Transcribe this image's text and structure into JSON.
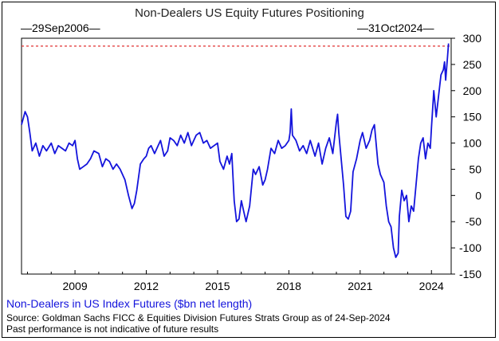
{
  "chart_data": {
    "type": "line",
    "title": "Non-Dealers US Equity Futures Positioning",
    "start_label": "29Sep2006",
    "end_label": "31Oct2024",
    "legend": "Non-Dealers in US Index Futures ($bn net length)",
    "source_lines": [
      "Source: Goldman Sachs FICC & Equities Division Futures Strats Group as of 24-Sep-2024",
      "Past performance is not indicative of future results"
    ],
    "xlim": [
      2006.75,
      2024.83
    ],
    "ylim": [
      -150,
      300
    ],
    "x_ticks": [
      2009,
      2012,
      2015,
      2018,
      2021,
      2024
    ],
    "y_ticks": [
      300,
      250,
      200,
      150,
      100,
      50,
      0,
      -50,
      -100,
      -150
    ],
    "reference_line": {
      "y": 285,
      "color": "#e03030",
      "style": "dashed"
    },
    "line_color": "#1414dc",
    "series": [
      {
        "x": [
          2006.75,
          2006.9,
          2007.0,
          2007.1,
          2007.2,
          2007.35,
          2007.5,
          2007.65,
          2007.8,
          2008.0,
          2008.15,
          2008.3,
          2008.45,
          2008.6,
          2008.75,
          2008.9,
          2009.0,
          2009.1,
          2009.2,
          2009.35,
          2009.5,
          2009.65,
          2009.8,
          2010.0,
          2010.15,
          2010.3,
          2010.45,
          2010.6,
          2010.75,
          2010.9,
          2011.0,
          2011.1,
          2011.25,
          2011.4,
          2011.5,
          2011.6,
          2011.75,
          2011.9,
          2012.0,
          2012.1,
          2012.2,
          2012.35,
          2012.5,
          2012.6,
          2012.75,
          2012.9,
          2013.0,
          2013.15,
          2013.3,
          2013.45,
          2013.6,
          2013.75,
          2013.9,
          2014.0,
          2014.1,
          2014.25,
          2014.4,
          2014.55,
          2014.7,
          2014.85,
          2015.0,
          2015.1,
          2015.25,
          2015.4,
          2015.5,
          2015.6,
          2015.7,
          2015.8,
          2015.9,
          2016.0,
          2016.1,
          2016.2,
          2016.35,
          2016.5,
          2016.6,
          2016.75,
          2016.9,
          2017.0,
          2017.1,
          2017.25,
          2017.4,
          2017.55,
          2017.7,
          2017.85,
          2018.0,
          2018.05,
          2018.1,
          2018.15,
          2018.3,
          2018.45,
          2018.6,
          2018.75,
          2018.9,
          2019.0,
          2019.1,
          2019.25,
          2019.4,
          2019.55,
          2019.7,
          2019.85,
          2020.0,
          2020.05,
          2020.1,
          2020.2,
          2020.3,
          2020.4,
          2020.5,
          2020.6,
          2020.7,
          2020.85,
          2021.0,
          2021.1,
          2021.25,
          2021.4,
          2021.5,
          2021.6,
          2021.75,
          2021.85,
          2022.0,
          2022.1,
          2022.2,
          2022.3,
          2022.4,
          2022.5,
          2022.6,
          2022.65,
          2022.75,
          2022.85,
          2022.95,
          2023.05,
          2023.15,
          2023.25,
          2023.35,
          2023.45,
          2023.55,
          2023.65,
          2023.75,
          2023.85,
          2023.95,
          2024.0,
          2024.1,
          2024.2,
          2024.3,
          2024.4,
          2024.5,
          2024.55,
          2024.6,
          2024.67,
          2024.72
        ],
        "y": [
          135,
          160,
          150,
          120,
          85,
          100,
          75,
          95,
          85,
          100,
          80,
          95,
          90,
          85,
          100,
          95,
          105,
          70,
          50,
          55,
          60,
          70,
          85,
          80,
          55,
          70,
          65,
          50,
          60,
          50,
          40,
          30,
          0,
          -25,
          -15,
          10,
          60,
          70,
          75,
          90,
          95,
          80,
          95,
          105,
          75,
          85,
          110,
          105,
          95,
          115,
          100,
          120,
          95,
          105,
          115,
          120,
          100,
          105,
          90,
          95,
          100,
          65,
          50,
          75,
          60,
          80,
          -10,
          -50,
          -45,
          -10,
          -30,
          -50,
          -20,
          50,
          40,
          55,
          20,
          30,
          50,
          90,
          80,
          105,
          90,
          95,
          105,
          120,
          165,
          115,
          105,
          85,
          95,
          80,
          105,
          90,
          75,
          100,
          60,
          90,
          110,
          80,
          140,
          155,
          120,
          70,
          20,
          -40,
          -45,
          -30,
          45,
          70,
          105,
          120,
          90,
          105,
          125,
          135,
          60,
          40,
          25,
          -20,
          -50,
          -60,
          -100,
          -118,
          -110,
          -40,
          10,
          -10,
          0,
          -50,
          -20,
          -30,
          20,
          70,
          100,
          110,
          70,
          100,
          90,
          130,
          200,
          150,
          190,
          230,
          240,
          255,
          220,
          260,
          290
        ]
      }
    ]
  }
}
